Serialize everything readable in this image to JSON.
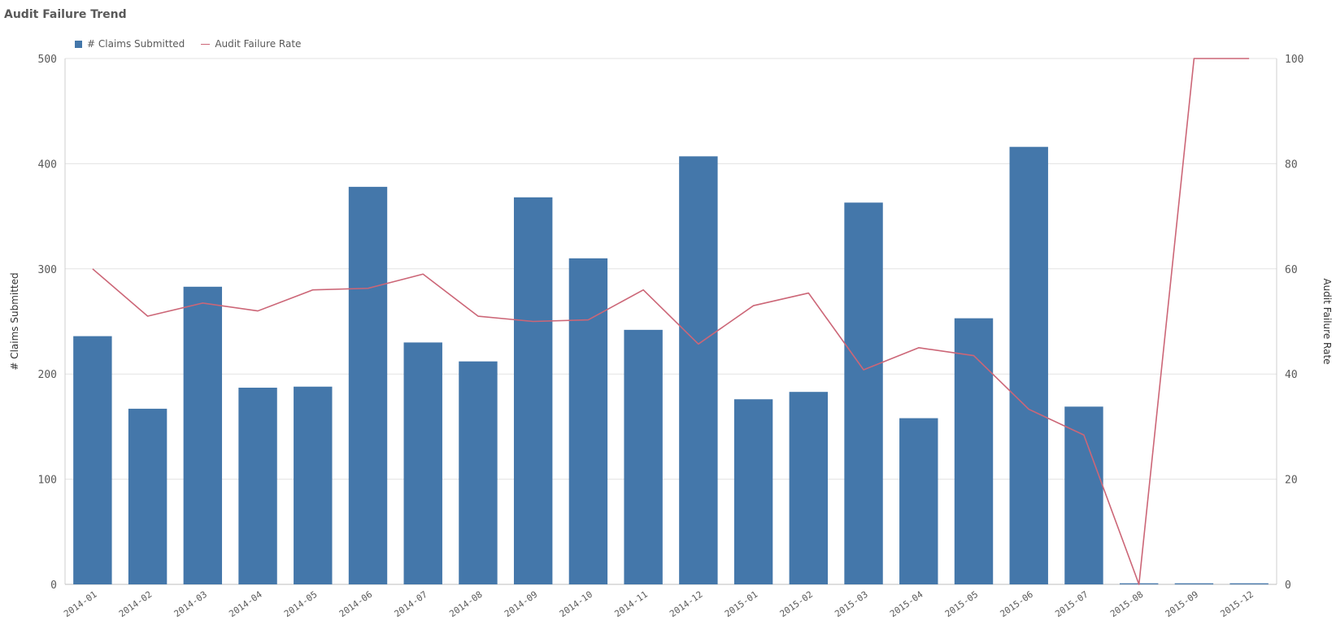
{
  "chart_data": {
    "type": "bar",
    "title": "Audit Failure Trend",
    "categories": [
      "2014-01",
      "2014-02",
      "2014-03",
      "2014-04",
      "2014-05",
      "2014-06",
      "2014-07",
      "2014-08",
      "2014-09",
      "2014-10",
      "2014-11",
      "2014-12",
      "2015-01",
      "2015-02",
      "2015-03",
      "2015-04",
      "2015-05",
      "2015-06",
      "2015-07",
      "2015-08",
      "2015-09",
      "2015-12"
    ],
    "series": [
      {
        "name": "# Claims Submitted",
        "type": "bar",
        "axis": "left",
        "values": [
          236,
          167,
          283,
          187,
          188,
          378,
          230,
          212,
          368,
          310,
          242,
          407,
          176,
          183,
          363,
          158,
          253,
          416,
          169,
          1,
          1,
          1
        ]
      },
      {
        "name": "Audit Failure Rate",
        "type": "line",
        "axis": "right",
        "values": [
          60.0,
          51.0,
          53.5,
          52.0,
          56.0,
          56.3,
          59.0,
          51.0,
          50.0,
          50.3,
          56.0,
          45.7,
          53.0,
          55.4,
          40.8,
          45.0,
          43.5,
          33.3,
          28.4,
          0.0,
          100.0,
          100.0
        ]
      }
    ],
    "ylabel": "# Claims Submitted",
    "ylabel_right": "Audit Failure Rate",
    "ylim": [
      0,
      500
    ],
    "ylim_right": [
      0,
      100
    ],
    "yticks": [
      "0",
      "100",
      "200",
      "300",
      "400",
      "500"
    ],
    "yticks_right": [
      "0",
      "20",
      "40",
      "60",
      "80",
      "100"
    ],
    "grid": true,
    "legend_position": "top-left",
    "colors": {
      "bar": "#4477aa",
      "line": "#cc6677",
      "grid": "#e3e3e3",
      "text": "#595959"
    }
  }
}
